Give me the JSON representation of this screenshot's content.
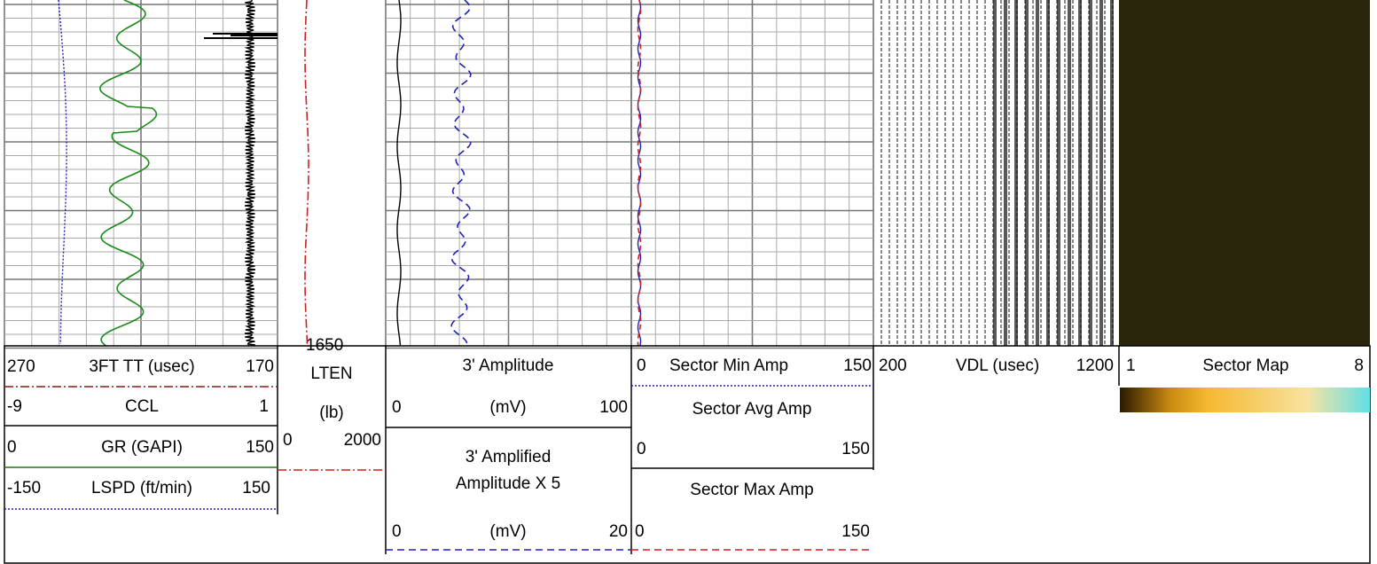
{
  "depth_label": "1650",
  "track1": {
    "curves": [
      {
        "left": "270",
        "name": "3FT TT (usec)",
        "right": "170"
      },
      {
        "left": "-9",
        "name": "CCL",
        "right": "1"
      },
      {
        "left": "0",
        "name": "GR (GAPI)",
        "right": "150"
      },
      {
        "left": "-150",
        "name": "LSPD (ft/min)",
        "right": "150"
      }
    ]
  },
  "depth_track": {
    "name": "LTEN",
    "unit": "(lb)",
    "left": "0",
    "right": "2000"
  },
  "track2": {
    "title": "3' Amplitude",
    "left": "0",
    "unit": "(mV)",
    "right": "100",
    "title2a": "3' Amplified",
    "title2b": "Amplitude X 5",
    "left2": "0",
    "unit2": "(mV)",
    "right2": "20"
  },
  "track3": {
    "min_left": "0",
    "min_name": "Sector Min Amp",
    "min_right": "150",
    "avg_name": "Sector Avg Amp",
    "avg_left": "0",
    "avg_right": "150",
    "max_name": "Sector Max Amp",
    "max_left": "0",
    "max_right": "150"
  },
  "vdl": {
    "left": "200",
    "name": "VDL (usec)",
    "right": "1200"
  },
  "sector_map": {
    "left": "1",
    "name": "Sector Map",
    "right": "8"
  }
}
